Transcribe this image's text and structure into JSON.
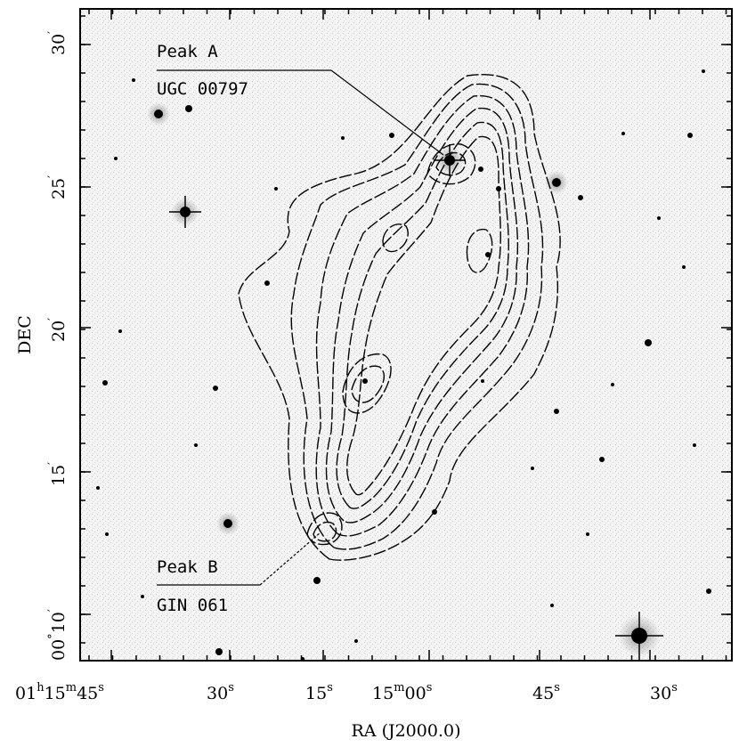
{
  "axes": {
    "xlabel": "RA (J2000.0)",
    "ylabel": "DEC",
    "x_ticks": [
      {
        "h": "01",
        "m": "15",
        "s": "45"
      },
      {
        "s": "30"
      },
      {
        "s": "15"
      },
      {
        "m": "15",
        "s": "00"
      },
      {
        "s": "45"
      },
      {
        "s": "30"
      }
    ],
    "y_ticks": [
      {
        "label": "30",
        "deg": ""
      },
      {
        "label": "25",
        "deg": ""
      },
      {
        "label": "20",
        "deg": ""
      },
      {
        "label": "15",
        "deg": ""
      },
      {
        "label": "10",
        "deg": "00"
      }
    ],
    "minute_mark": "′",
    "unit_h": "h",
    "unit_m": "m",
    "unit_s": "s",
    "unit_deg": "°"
  },
  "annotations": {
    "peak_a": {
      "name": "Peak A",
      "id": "UGC 00797"
    },
    "peak_b": {
      "name": "Peak B",
      "id": "GIN 061"
    }
  },
  "colors": {
    "background": "#f2f2f2",
    "stars": "#000000",
    "contours": "#000000"
  }
}
